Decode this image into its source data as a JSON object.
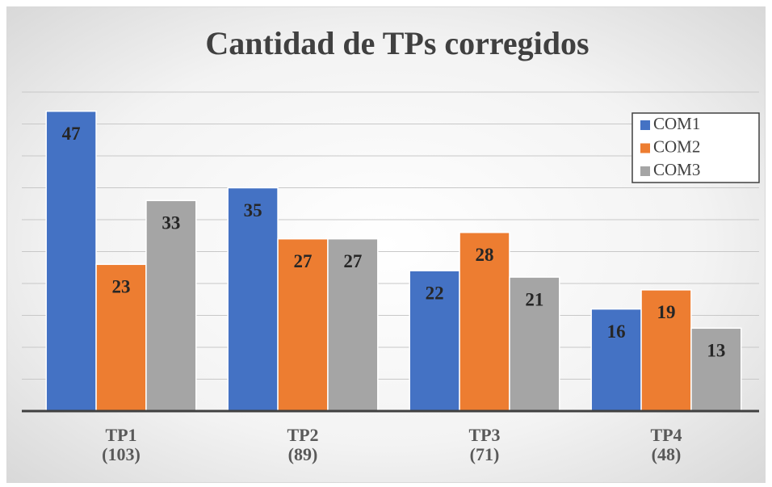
{
  "chart_data": {
    "type": "bar",
    "title": "Cantidad de TPs corregidos",
    "categories": [
      "TP1",
      "TP2",
      "TP3",
      "TP4"
    ],
    "category_notes": [
      "(103)",
      "(89)",
      "(71)",
      "(48)"
    ],
    "series": [
      {
        "name": "COM1",
        "color": "#4472c4",
        "values": [
          47,
          35,
          22,
          16
        ]
      },
      {
        "name": "COM2",
        "color": "#ed7d31",
        "values": [
          23,
          27,
          28,
          19
        ]
      },
      {
        "name": "COM3",
        "color": "#a5a5a5",
        "values": [
          33,
          27,
          21,
          13
        ]
      }
    ],
    "ylim": [
      0,
      50
    ],
    "yticks": [
      0,
      5,
      10,
      15,
      20,
      25,
      30,
      35,
      40,
      45,
      50
    ],
    "grid": true,
    "legend": "top-right"
  }
}
